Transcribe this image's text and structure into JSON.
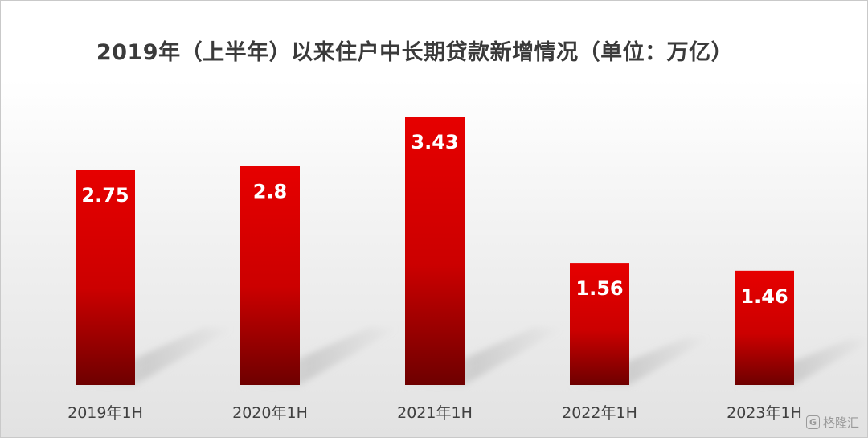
{
  "chart_data": {
    "type": "bar",
    "title": "2019年（上半年）以来住户中长期贷款新增情况（单位：万亿）",
    "categories": [
      "2019年1H",
      "2020年1H",
      "2021年1H",
      "2022年1H",
      "2023年1H"
    ],
    "values": [
      2.75,
      2.8,
      3.43,
      1.56,
      1.46
    ],
    "data_labels": [
      "2.75",
      "2.8",
      "3.43",
      "1.56",
      "1.46"
    ],
    "xlabel": "",
    "ylabel": "",
    "ylim": [
      0,
      3.43
    ],
    "grid": false,
    "legend": "none",
    "colors": {
      "bar_top": "#e60000",
      "bar_mid": "#cc0000",
      "bar_bottom": "#6e0000",
      "shadow": "#bdbdbd"
    }
  },
  "watermark": {
    "icon": "G",
    "text": "格隆汇"
  }
}
